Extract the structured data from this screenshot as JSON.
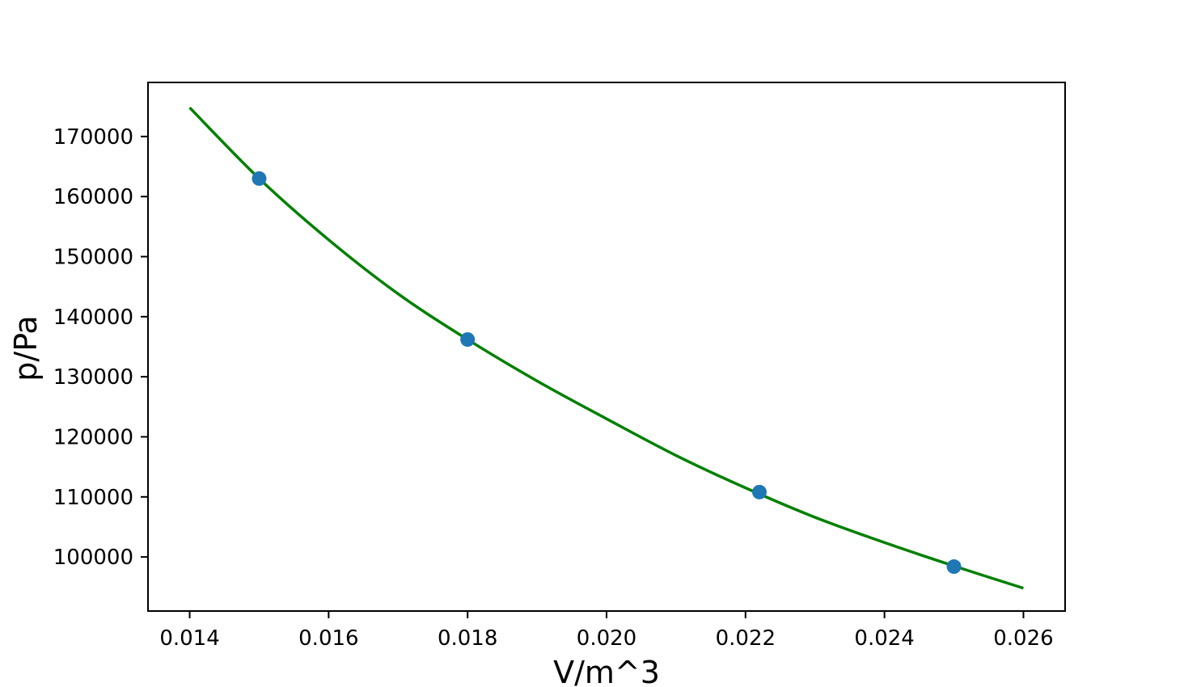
{
  "chart_data": {
    "type": "scatter",
    "title": "",
    "xlabel": "V/m^3",
    "ylabel": "p/Pa",
    "xlim": [
      0.0134,
      0.0266
    ],
    "ylim": [
      91000,
      179000
    ],
    "grid": false,
    "legend": "none",
    "x_ticks": [
      0.014,
      0.016,
      0.018,
      0.02,
      0.022,
      0.024,
      0.026
    ],
    "x_tick_labels": [
      "0.014",
      "0.016",
      "0.018",
      "0.020",
      "0.022",
      "0.024",
      "0.026"
    ],
    "y_ticks": [
      100000,
      110000,
      120000,
      130000,
      140000,
      150000,
      160000,
      170000
    ],
    "y_tick_labels": [
      "100000",
      "110000",
      "120000",
      "130000",
      "140000",
      "150000",
      "160000",
      "170000"
    ],
    "series": [
      {
        "kind": "scatter",
        "color": "#1f77b4",
        "x": [
          0.015,
          0.018,
          0.0222,
          0.025
        ],
        "y": [
          163000,
          136200,
          110800,
          98400
        ]
      },
      {
        "kind": "line",
        "color": "#008000",
        "x": [
          0.014,
          0.015,
          0.016,
          0.017,
          0.018,
          0.019,
          0.02,
          0.021,
          0.022,
          0.023,
          0.024,
          0.025,
          0.026
        ],
        "y": [
          174800,
          163000,
          152800,
          143800,
          136200,
          129300,
          123000,
          116900,
          111500,
          106600,
          102400,
          98500,
          94800
        ]
      }
    ]
  }
}
